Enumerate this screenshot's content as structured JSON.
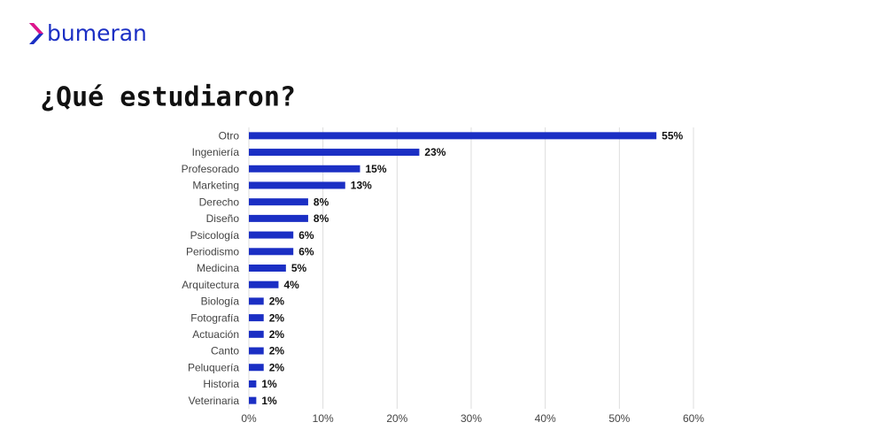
{
  "brand": "bumeran",
  "chart_data": {
    "type": "bar",
    "orientation": "horizontal",
    "title": "¿Qué estudiaron?",
    "categories": [
      "Otro",
      "Ingeniería",
      "Profesorado",
      "Marketing",
      "Derecho",
      "Diseño",
      "Psicología",
      "Periodismo",
      "Medicina",
      "Arquitectura",
      "Biología",
      "Fotografía",
      "Actuación",
      "Canto",
      "Peluquería",
      "Historia",
      "Veterinaria"
    ],
    "values": [
      55,
      23,
      15,
      13,
      8,
      8,
      6,
      6,
      5,
      4,
      2,
      2,
      2,
      2,
      2,
      1,
      1
    ],
    "value_labels": [
      "55%",
      "23%",
      "15%",
      "13%",
      "8%",
      "8%",
      "6%",
      "6%",
      "5%",
      "4%",
      "2%",
      "2%",
      "2%",
      "2%",
      "2%",
      "1%",
      "1%"
    ],
    "color": "#1b2fc4",
    "xlim": [
      0,
      60
    ],
    "xticks": [
      {
        "value": 0,
        "label": "0%"
      },
      {
        "value": 10,
        "label": "10%"
      },
      {
        "value": 20,
        "label": "20%"
      },
      {
        "value": 30,
        "label": "30%"
      },
      {
        "value": 40,
        "label": "40%"
      },
      {
        "value": 50,
        "label": "50%"
      },
      {
        "value": 60,
        "label": "60%"
      }
    ],
    "grid": true
  }
}
